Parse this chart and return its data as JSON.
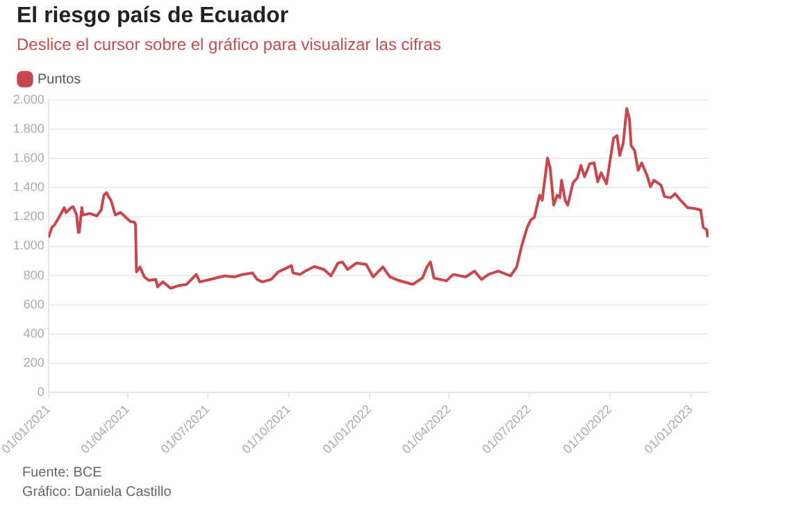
{
  "chart_data": {
    "type": "line",
    "title": "El riesgo país de Ecuador",
    "subtitle": "Deslice el cursor sobre el gráfico para visualizar las cifras",
    "annotations": [
      "Fuente: BCE",
      "Gráfico: Daniela Castillo"
    ],
    "x": [
      "2021-01-01",
      "2021-01-05",
      "2021-01-08",
      "2021-01-13",
      "2021-01-19",
      "2021-01-21",
      "2021-01-27",
      "2021-01-29",
      "2021-02-02",
      "2021-02-04",
      "2021-02-05",
      "2021-02-08",
      "2021-02-09",
      "2021-02-17",
      "2021-02-25",
      "2021-03-02",
      "2021-03-05",
      "2021-03-08",
      "2021-03-11",
      "2021-03-13",
      "2021-03-18",
      "2021-03-24",
      "2021-03-30",
      "2021-04-04",
      "2021-04-09",
      "2021-04-10",
      "2021-04-11",
      "2021-04-15",
      "2021-04-20",
      "2021-04-25",
      "2021-05-03",
      "2021-05-05",
      "2021-05-11",
      "2021-05-20",
      "2021-05-28",
      "2021-06-07",
      "2021-06-18",
      "2021-06-22",
      "2021-07-04",
      "2021-07-15",
      "2021-07-20",
      "2021-07-31",
      "2021-08-10",
      "2021-08-21",
      "2021-08-26",
      "2021-09-01",
      "2021-09-11",
      "2021-09-19",
      "2021-10-01",
      "2021-10-04",
      "2021-10-06",
      "2021-10-14",
      "2021-10-20",
      "2021-10-30",
      "2021-11-10",
      "2021-11-18",
      "2021-11-26",
      "2021-12-01",
      "2021-12-07",
      "2021-12-17",
      "2021-12-28",
      "2022-01-05",
      "2022-01-16",
      "2022-01-24",
      "2022-02-03",
      "2022-02-19",
      "2022-03-02",
      "2022-03-07",
      "2022-03-11",
      "2022-03-15",
      "2022-03-29",
      "2022-04-06",
      "2022-04-20",
      "2022-04-30",
      "2022-05-08",
      "2022-05-16",
      "2022-05-27",
      "2022-06-10",
      "2022-06-17",
      "2022-06-23",
      "2022-06-29",
      "2022-07-03",
      "2022-07-07",
      "2022-07-13",
      "2022-07-16",
      "2022-07-22",
      "2022-07-25",
      "2022-07-29",
      "2022-08-02",
      "2022-08-05",
      "2022-08-07",
      "2022-08-11",
      "2022-08-14",
      "2022-08-20",
      "2022-08-25",
      "2022-08-29",
      "2022-09-02",
      "2022-09-08",
      "2022-09-13",
      "2022-09-17",
      "2022-09-21",
      "2022-09-27",
      "2022-09-30",
      "2022-10-05",
      "2022-10-09",
      "2022-10-12",
      "2022-10-16",
      "2022-10-20",
      "2022-10-23",
      "2022-10-25",
      "2022-10-29",
      "2022-11-02",
      "2022-11-06",
      "2022-11-12",
      "2022-11-16",
      "2022-11-20",
      "2022-11-28",
      "2022-12-02",
      "2022-12-09",
      "2022-12-14",
      "2022-12-20",
      "2022-12-28",
      "2023-01-05",
      "2023-01-12",
      "2023-01-15",
      "2023-01-19",
      "2023-01-20"
    ],
    "series": [
      {
        "name": "Puntos",
        "color": "#c8474f",
        "values": [
          1060,
          1130,
          1146,
          1197,
          1264,
          1230,
          1265,
          1271,
          1214,
          1095,
          1095,
          1265,
          1214,
          1224,
          1207,
          1248,
          1349,
          1366,
          1332,
          1315,
          1214,
          1231,
          1197,
          1170,
          1163,
          1146,
          824,
          858,
          790,
          766,
          773,
          722,
          756,
          712,
          729,
          739,
          807,
          756,
          773,
          790,
          797,
          790,
          807,
          817,
          773,
          756,
          773,
          824,
          858,
          868,
          817,
          807,
          830,
          861,
          841,
          797,
          885,
          892,
          841,
          885,
          875,
          790,
          858,
          790,
          766,
          739,
          783,
          858,
          892,
          783,
          763,
          807,
          790,
          830,
          773,
          807,
          830,
          797,
          858,
          1010,
          1129,
          1180,
          1197,
          1349,
          1315,
          1603,
          1536,
          1281,
          1349,
          1332,
          1451,
          1315,
          1281,
          1434,
          1468,
          1553,
          1475,
          1563,
          1570,
          1441,
          1502,
          1427,
          1543,
          1739,
          1756,
          1620,
          1705,
          1942,
          1875,
          1688,
          1654,
          1519,
          1570,
          1485,
          1407,
          1451,
          1417,
          1339,
          1332,
          1359,
          1315,
          1264,
          1258,
          1248,
          1129,
          1112,
          1061
        ]
      }
    ],
    "xlim": [
      "2021-01-01",
      "2023-01-21"
    ],
    "xticks": [
      {
        "value": "2021-01-01",
        "label": "01/01/2021"
      },
      {
        "value": "2021-04-01",
        "label": "01/04/2021"
      },
      {
        "value": "2021-07-01",
        "label": "01/07/2021"
      },
      {
        "value": "2021-10-01",
        "label": "01/10/2021"
      },
      {
        "value": "2022-01-01",
        "label": "01/01/2022"
      },
      {
        "value": "2022-04-01",
        "label": "01/04/2022"
      },
      {
        "value": "2022-07-01",
        "label": "01/07/2022"
      },
      {
        "value": "2022-10-01",
        "label": "01/10/2022"
      },
      {
        "value": "2023-01-01",
        "label": "01/01/2023"
      }
    ],
    "ylim": [
      0,
      2000
    ],
    "yticks": [
      0,
      {
        "value": 200,
        "label": "200"
      },
      400,
      600,
      800,
      {
        "value": 1000,
        "label": "1.000"
      },
      {
        "value": 1200,
        "label": "1.200"
      },
      {
        "value": 1400,
        "label": "1.400"
      },
      {
        "value": 1600,
        "label": "1.600"
      },
      {
        "value": 1800,
        "label": "1.800"
      },
      {
        "value": 2000,
        "label": "2.000"
      }
    ],
    "grid": "y",
    "legend": "top left"
  }
}
